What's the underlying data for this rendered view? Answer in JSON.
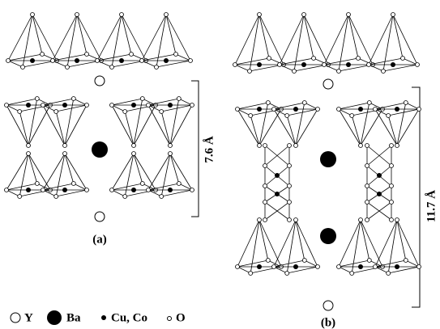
{
  "panels": [
    {
      "label": "(a)",
      "dimension": "7.6 Å"
    },
    {
      "label": "(b)",
      "dimension": "11.7 Å"
    }
  ],
  "legend": [
    "Y",
    "Ba",
    "Cu, Co",
    "O"
  ]
}
